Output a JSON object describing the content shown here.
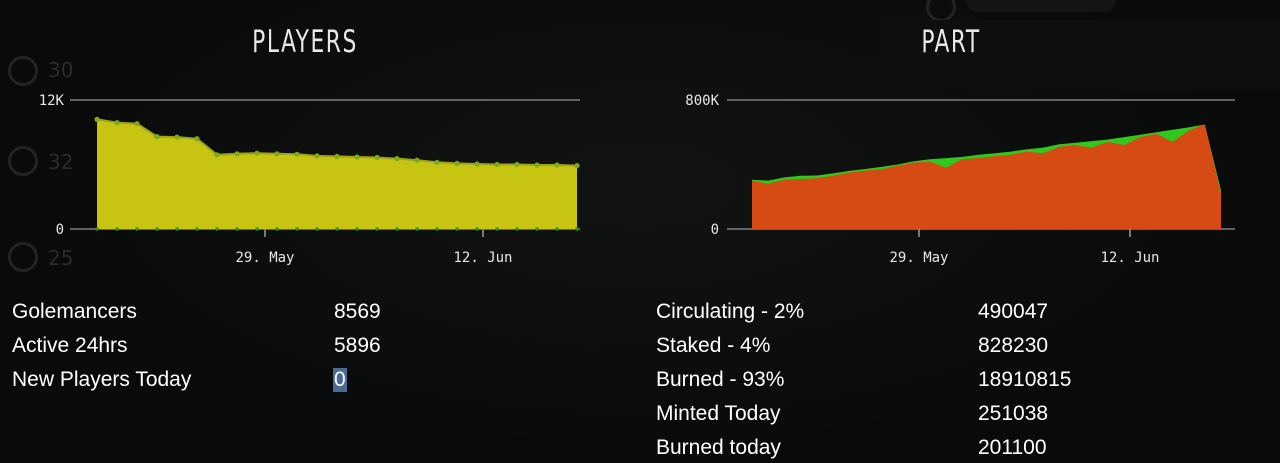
{
  "players_panel": {
    "title": "PLAYERS",
    "stats": [
      {
        "label": "Golemancers",
        "value": "8569"
      },
      {
        "label": "Active 24hrs",
        "value": "5896"
      },
      {
        "label": "New Players Today",
        "value": "0"
      }
    ]
  },
  "part_panel": {
    "title": "PART",
    "stats": [
      {
        "label": "Circulating - 2%",
        "value": "490047"
      },
      {
        "label": "Staked - 4%",
        "value": "828230"
      },
      {
        "label": "Burned - 93%",
        "value": "18910815"
      },
      {
        "label": "Minted Today",
        "value": "251038"
      },
      {
        "label": "Burned today",
        "value": "201100"
      }
    ]
  },
  "background_ghost": {
    "values": [
      "30",
      "32",
      "25"
    ]
  },
  "chart_data": [
    {
      "type": "area",
      "x_tick_labels": [
        "29. May",
        "12. Jun"
      ],
      "y_tick_labels": [
        "12K",
        "0"
      ],
      "ylim": [
        0,
        12000
      ],
      "grid": true,
      "legend": "none",
      "series": [
        {
          "color": "#c8c512",
          "values": [
            10200,
            9900,
            9800,
            8600,
            8550,
            8400,
            6900,
            7000,
            7050,
            7000,
            6950,
            6800,
            6750,
            6700,
            6650,
            6550,
            6400,
            6200,
            6100,
            6050,
            6000,
            6000,
            5950,
            5950,
            5900
          ]
        }
      ]
    },
    {
      "type": "area",
      "x_tick_labels": [
        "29. May",
        "12. Jun"
      ],
      "y_tick_labels": [
        "800K",
        "0"
      ],
      "ylim": [
        0,
        800000
      ],
      "grid": true,
      "legend": "none",
      "series": [
        {
          "color": "#2ec81e",
          "values": [
            305000,
            300000,
            320000,
            330000,
            332000,
            345000,
            360000,
            372000,
            385000,
            400000,
            420000,
            432000,
            440000,
            447000,
            460000,
            470000,
            480000,
            495000,
            505000,
            525000,
            535000,
            545000,
            555000,
            570000,
            585000,
            600000,
            615000,
            630000,
            648000,
            240000
          ]
        },
        {
          "color": "#d64a14",
          "values": [
            300000,
            280000,
            305000,
            310000,
            315000,
            330000,
            350000,
            362000,
            370000,
            392000,
            412000,
            418000,
            380000,
            432000,
            440000,
            452000,
            460000,
            480000,
            470000,
            510000,
            520000,
            505000,
            540000,
            520000,
            570000,
            590000,
            540000,
            610000,
            650000,
            220000
          ]
        }
      ]
    }
  ]
}
